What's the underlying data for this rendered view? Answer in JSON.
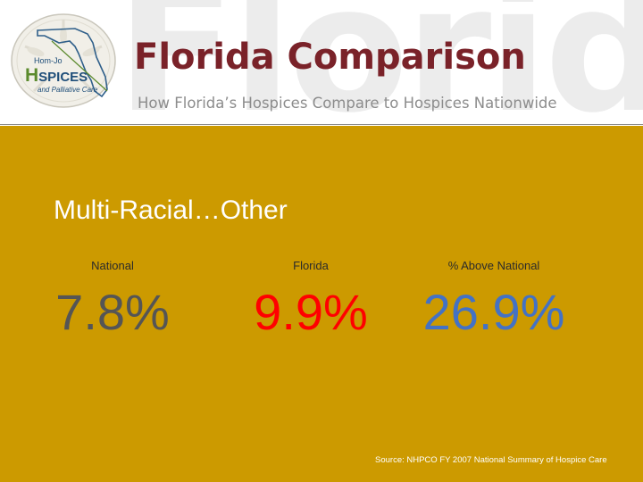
{
  "header": {
    "watermark": "Florida",
    "title": "Florida Comparison",
    "subtitle": "How Florida’s Hospices Compare to Hospices Nationwide",
    "logo": {
      "line1": "Hom-Jo",
      "letter_h": "H",
      "line2_rest": "SPICES",
      "line3": "and Palliative Care"
    }
  },
  "slide": {
    "heading": "Multi-Racial…Other",
    "columns": [
      {
        "label": "National",
        "value": "7.8%",
        "color": "#555555"
      },
      {
        "label": "Florida",
        "value": "9.9%",
        "color": "#ff0000"
      },
      {
        "label": "% Above National",
        "value": "26.9%",
        "color": "#4472c4"
      }
    ],
    "source": "Source: NHPCO FY 2007 National Summary of Hospice Care"
  },
  "colors": {
    "background": "#cc9a00",
    "title": "#7a2229",
    "subtitle": "#8c8c8c",
    "header_background": "#ffffff"
  },
  "icons": {
    "logo": "sand-dollar-florida-logo"
  }
}
